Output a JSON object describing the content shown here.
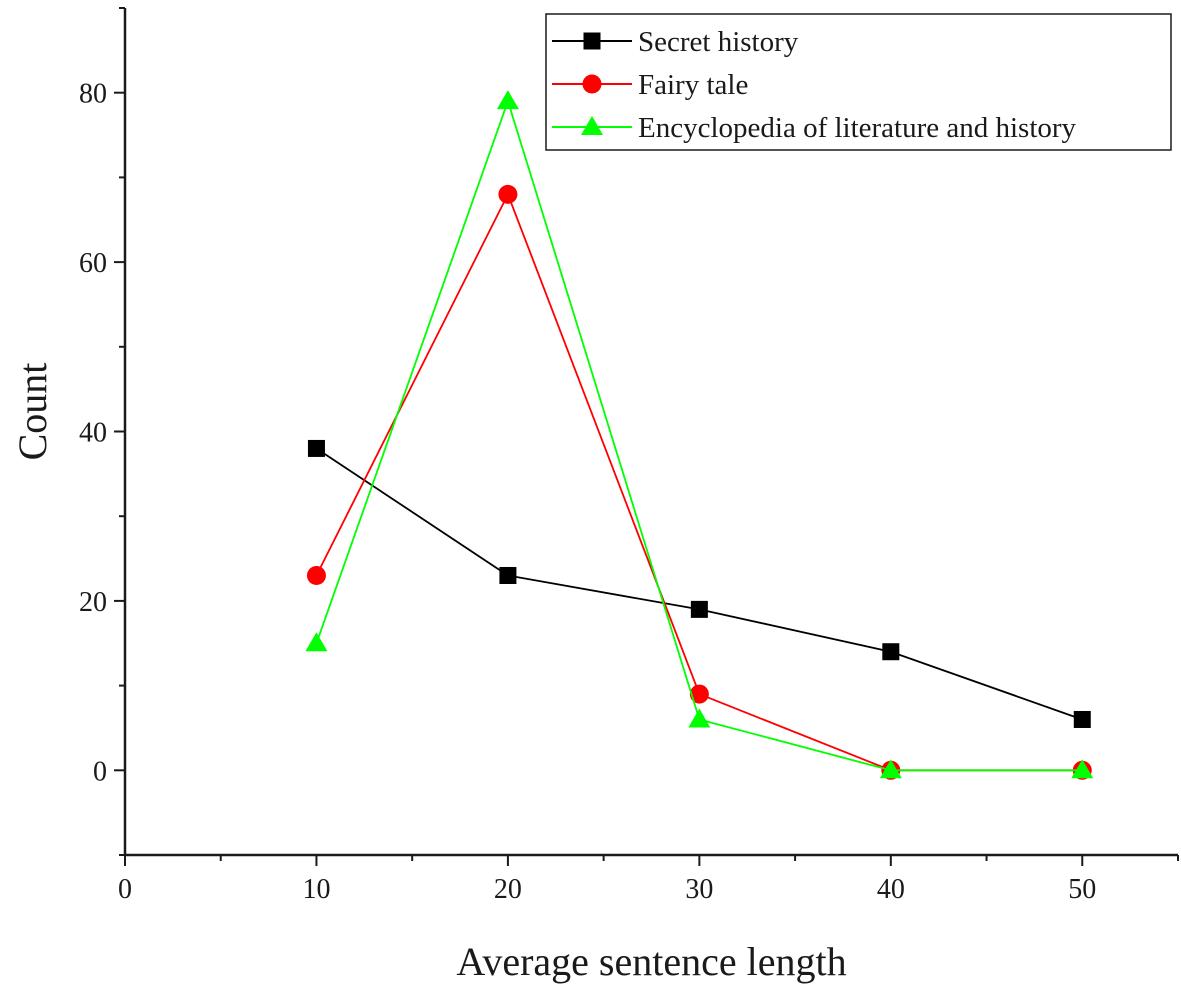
{
  "chart_data": {
    "type": "line",
    "title": "",
    "xlabel": "Average sentence length",
    "ylabel": "Count",
    "xlim": [
      0,
      55
    ],
    "ylim": [
      -10,
      90
    ],
    "xticks": [
      0,
      10,
      20,
      30,
      40,
      50
    ],
    "yticks": [
      0,
      20,
      40,
      60,
      80
    ],
    "xtick_labels": [
      "0",
      "10",
      "20",
      "30",
      "40",
      "50"
    ],
    "ytick_labels": [
      "0",
      "20",
      "40",
      "60",
      "80"
    ],
    "grid": false,
    "legend_position": "top-right",
    "x": [
      10,
      20,
      30,
      40,
      50
    ],
    "series": [
      {
        "name": "Secret history",
        "values": [
          38,
          23,
          19,
          14,
          6
        ],
        "color": "#000000",
        "marker": "square"
      },
      {
        "name": "Fairy tale",
        "values": [
          23,
          68,
          9,
          0,
          0
        ],
        "color": "#ff0000",
        "marker": "circle"
      },
      {
        "name": "Encyclopedia of literature and history",
        "values": [
          15,
          79,
          6,
          0,
          0
        ],
        "color": "#00ff00",
        "marker": "triangle"
      }
    ]
  }
}
